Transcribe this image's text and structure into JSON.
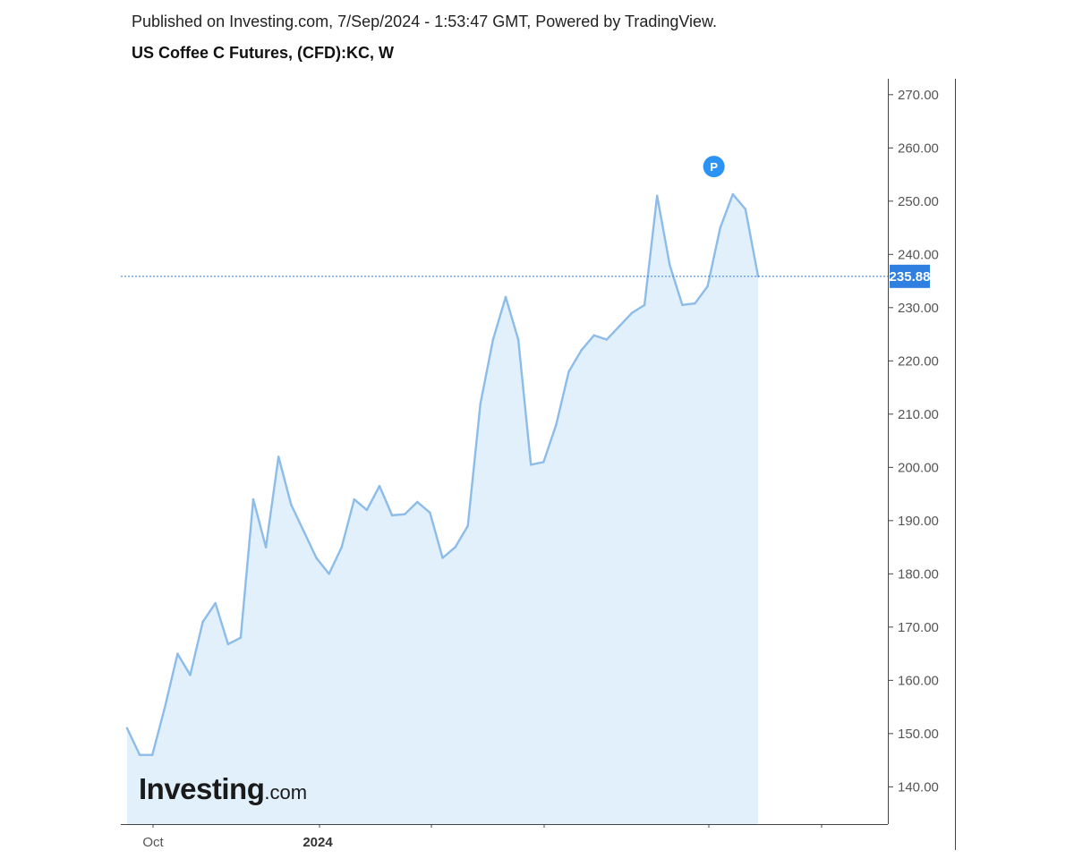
{
  "header": {
    "published": "Published on Investing.com, 7/Sep/2024 - 1:53:47 GMT, Powered by TradingView.",
    "title": "US Coffee C Futures, (CFD):KC, W"
  },
  "logo": {
    "main": "Investing",
    "suffix": ".com"
  },
  "chart_data": {
    "type": "area",
    "title": "US Coffee C Futures, (CFD):KC, W",
    "xlabel": "",
    "ylabel": "",
    "x_axis_labels": [
      {
        "label": "Oct",
        "bold": false
      },
      {
        "label": "2024",
        "bold": true
      }
    ],
    "y_ticks": [
      140,
      150,
      160,
      170,
      180,
      190,
      200,
      210,
      220,
      230,
      240,
      250,
      260,
      270
    ],
    "y_tick_labels": [
      "140.00",
      "150.00",
      "160.00",
      "170.00",
      "180.00",
      "190.00",
      "200.00",
      "210.00",
      "220.00",
      "230.00",
      "240.00",
      "250.00",
      "260.00",
      "270.00"
    ],
    "ylim": [
      133,
      274
    ],
    "grid": false,
    "series": [
      {
        "values": [
          151,
          146,
          146,
          155,
          165,
          161,
          171,
          174.5,
          166.8,
          168,
          194,
          185,
          202,
          193,
          188,
          183,
          180,
          185,
          194,
          192,
          196.5,
          191,
          191.2,
          193.5,
          191.5,
          183,
          185,
          189,
          212,
          224,
          232,
          224,
          200.5,
          201,
          208,
          218,
          222,
          224.8,
          224,
          226.5,
          229,
          230.5,
          251,
          238,
          230.5,
          230.8,
          234,
          245,
          251.3,
          248.5,
          235.88
        ]
      }
    ],
    "last_price": 235.88,
    "last_price_label": "235.88",
    "marker": {
      "label": "P",
      "index": 46.5,
      "value": 256.5
    },
    "colors": {
      "line": "#8cbcea",
      "fill": "#e1f0fa",
      "price_tag": "#2f7fe0",
      "marker": "#2b93f3",
      "axis": "#444444"
    }
  }
}
